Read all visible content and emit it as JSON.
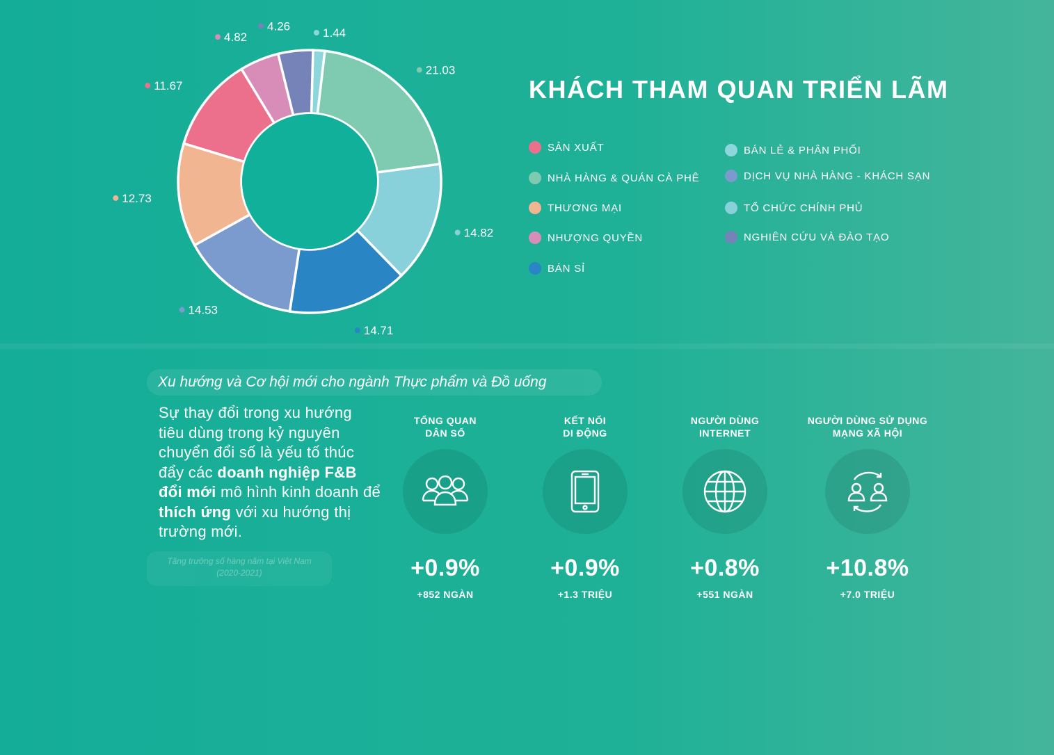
{
  "colors": {
    "bg": "#14ad98",
    "donut_center": "#11b09a",
    "donut_stroke": "#ffffff"
  },
  "chart_data": {
    "type": "pie",
    "title": "KHÁCH THAM QUAN TRIỂN LÃM",
    "donut": true,
    "slices": [
      {
        "category": "BÁN LẺ & PHÂN PHỐI",
        "value": 1.44,
        "color": "#8dd6dc"
      },
      {
        "category": "NHÀ HÀNG & QUÁN CÀ PHÊ",
        "value": 21.03,
        "color": "#7ecbb2"
      },
      {
        "category": "TỔ CHỨC CHÍNH PHỦ",
        "value": 14.82,
        "color": "#88d0da"
      },
      {
        "category": "BÁN SỈ",
        "value": 14.71,
        "color": "#2a85c5"
      },
      {
        "category": "DỊCH VỤ NHÀ HÀNG - KHÁCH SẠN",
        "value": 14.53,
        "color": "#7b9acd"
      },
      {
        "category": "THƯƠNG MẠI",
        "value": 12.73,
        "color": "#f2b592"
      },
      {
        "category": "SẢN XUẤT",
        "value": 11.67,
        "color": "#ec6f8c"
      },
      {
        "category": "NHƯỢNG QUYỀN",
        "value": 4.82,
        "color": "#d78db8"
      },
      {
        "category": "NGHIÊN CỨU VÀ ĐÀO TẠO",
        "value": 4.26,
        "color": "#7683b8"
      }
    ],
    "legend_placement": "right"
  },
  "legend": {
    "left": [
      {
        "label": "SẢN XUẤT",
        "color": "#ec6f8c"
      },
      {
        "label": "NHÀ HÀNG & QUÁN CÀ PHÊ",
        "color": "#7ecbb2"
      },
      {
        "label": "THƯƠNG MẠI",
        "color": "#f2b592"
      },
      {
        "label": "NHƯỢNG QUYỀN",
        "color": "#d78db8"
      },
      {
        "label": "BÁN SỈ",
        "color": "#2a85c5"
      }
    ],
    "right": [
      {
        "label": "BÁN LẺ & PHÂN PHỐI",
        "color": "#8dd6dc"
      },
      {
        "label": "DỊCH VỤ NHÀ HÀNG - KHÁCH SẠN",
        "color": "#7b9acd"
      },
      {
        "label": "TỔ CHỨC CHÍNH PHỦ",
        "color": "#88d0da"
      },
      {
        "label": "NGHIÊN CỨU VÀ ĐÀO TẠO",
        "color": "#7683b8"
      }
    ]
  },
  "trends": {
    "pill_title": "Xu hướng và Cơ hội mới cho ngành Thực phẩm và Đồ uống",
    "paragraph": {
      "p1": "Sự thay đổi trong xu hướng tiêu dùng trong kỷ nguyên chuyển đổi số là yếu tố thúc đẩy các ",
      "b1": "doanh nghiệp F&B đổi mới",
      "p2": " mô hình kinh doanh để ",
      "b2": "thích ứng",
      "p3": " với xu hướng thị trường mới."
    },
    "note_line1": "Tăng trưởng số hàng năm tại Việt Nam",
    "note_line2": "(2020-2021)",
    "stats": [
      {
        "label_line1": "TỔNG QUAN",
        "label_line2": "DÂN SỐ",
        "value": "+0.9%",
        "sub": "+852 NGÀN",
        "icon": "people-group-icon"
      },
      {
        "label_line1": "KẾT NỐI",
        "label_line2": "DI ĐỘNG",
        "value": "+0.9%",
        "sub": "+1.3 TRIỆU",
        "icon": "smartphone-icon"
      },
      {
        "label_line1": "NGƯỜI DÙNG",
        "label_line2": "INTERNET",
        "value": "+0.8%",
        "sub": "+551 NGÀN",
        "icon": "globe-icon"
      },
      {
        "label_line1": "NGƯỜI DÙNG SỬ DỤNG",
        "label_line2": "MẠNG XÃ HỘI",
        "value": "+10.8%",
        "sub": "+7.0 TRIỆU",
        "icon": "social-exchange-icon"
      }
    ]
  }
}
